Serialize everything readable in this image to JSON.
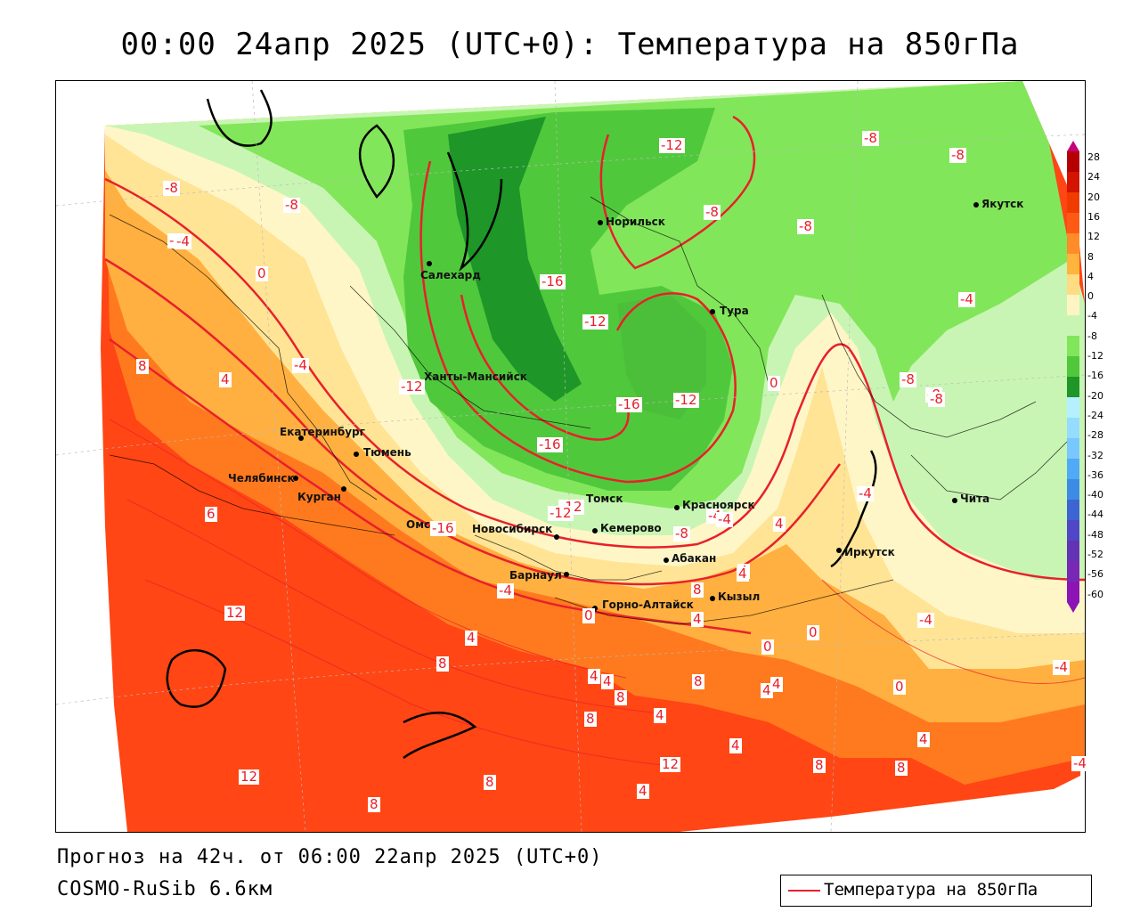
{
  "header": {
    "title": "00:00 24апр 2025 (UTC+0): Температура на 850гПа"
  },
  "footer": {
    "forecast": "Прогноз на 42ч. от 06:00 22апр 2025 (UTC+0)",
    "model": "COSMO-RuSib 6.6км"
  },
  "legend": {
    "label": "Температура на 850гПа",
    "line_color": "#e8202b"
  },
  "colorbar": {
    "ticks": [
      "28",
      "24",
      "20",
      "16",
      "12",
      "8",
      "4",
      "0",
      "-4",
      "-8",
      "-12",
      "-16",
      "-20",
      "-24",
      "-28",
      "-32",
      "-36",
      "-40",
      "-44",
      "-48",
      "-52",
      "-56",
      "-60"
    ],
    "colors": [
      "#c8007a",
      "#b40000",
      "#d21400",
      "#f03c00",
      "#ff5a14",
      "#ff8c28",
      "#ffb43c",
      "#ffdc82",
      "#fff5c3",
      "#c8f5b4",
      "#82e65a",
      "#50c83c",
      "#1e9628",
      "#b4f0ff",
      "#96dcff",
      "#78c8ff",
      "#50aaf5",
      "#3c8ce6",
      "#3c64d2",
      "#5046c8",
      "#6432b4",
      "#7828b4",
      "#8c14b4"
    ]
  },
  "cities": [
    {
      "name": "Салехард"
    },
    {
      "name": "Норильск"
    },
    {
      "name": "Якутск"
    },
    {
      "name": "Тура"
    },
    {
      "name": "Ханты-Мансийск"
    },
    {
      "name": "Екатеринбург"
    },
    {
      "name": "Тюмень"
    },
    {
      "name": "Челябинск"
    },
    {
      "name": "Курган"
    },
    {
      "name": "Омск"
    },
    {
      "name": "Новосибирск"
    },
    {
      "name": "Томск"
    },
    {
      "name": "Кемерово"
    },
    {
      "name": "Красноярск"
    },
    {
      "name": "Барнаул"
    },
    {
      "name": "Абакан"
    },
    {
      "name": "Горно-Алтайск"
    },
    {
      "name": "Кызыл"
    },
    {
      "name": "Иркутск"
    },
    {
      "name": "Чита"
    }
  ],
  "isotherm_labels": [
    "-8",
    "-8",
    "-4",
    "0",
    "-4",
    "-8",
    "-8",
    "-4",
    "-12",
    "-8",
    "-8",
    "-8",
    "-12",
    "-16",
    "-12",
    "-16",
    "-12",
    "-16",
    "-12",
    "-16",
    "8",
    "4",
    "-4",
    "0",
    "-8",
    "-8",
    "-4",
    "6",
    "12",
    "-4",
    "-4",
    "4",
    "8",
    "4",
    "8",
    "12",
    "12",
    "8",
    "8",
    "4",
    "8",
    "4",
    "4",
    "0",
    "0",
    "-4",
    "4",
    "4",
    "8",
    "4",
    "8",
    "0",
    "4",
    "-4",
    "8",
    "4",
    "8",
    "-4",
    "0",
    "-8",
    "-4",
    "-12",
    "4",
    "4",
    "4"
  ]
}
